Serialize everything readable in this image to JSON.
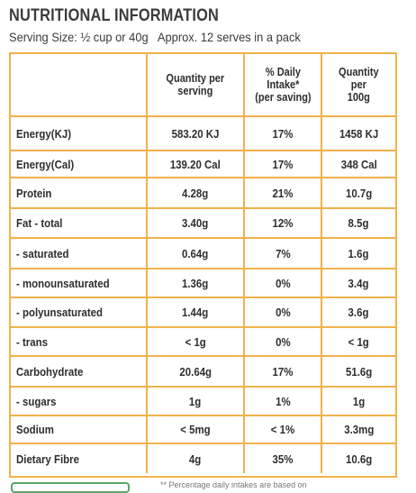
{
  "title": "NUTRITIONAL INFORMATION",
  "serving": {
    "size": "Serving Size: ½ cup or 40g",
    "serves": "Approx. 12 serves in a pack"
  },
  "table": {
    "headers": [
      "",
      "Quantity per\nserving",
      "% Daily\nIntake*\n(per saving)",
      "Quantity\nper\n100g"
    ],
    "rows": [
      [
        "Energy(KJ)",
        "583.20 KJ",
        "17%",
        "1458 KJ"
      ],
      [
        "Energy(Cal)",
        "139.20 Cal",
        "17%",
        "348 Cal"
      ],
      [
        "Protein",
        "4.28g",
        "21%",
        "10.7g"
      ],
      [
        "Fat - total",
        "3.40g",
        "12%",
        "8.5g"
      ],
      [
        "- saturated",
        "0.64g",
        "7%",
        "1.6g"
      ],
      [
        "- monounsaturated",
        "1.36g",
        "0%",
        "3.4g"
      ],
      [
        "- polyunsaturated",
        "1.44g",
        "0%",
        "3.6g"
      ],
      [
        "- trans",
        "< 1g",
        "0%",
        "< 1g"
      ],
      [
        "Carbohydrate",
        "20.64g",
        "17%",
        "51.6g"
      ],
      [
        "- sugars",
        "1g",
        "1%",
        "1g"
      ],
      [
        "Sodium",
        "< 5mg",
        "< 1%",
        "3.3mg"
      ],
      [
        "Dietary Fibre",
        "4g",
        "35%",
        "10.6g"
      ]
    ]
  },
  "footnote": "** Percentage daily intakes are based on",
  "colors": {
    "border": "#f0b24a",
    "footer_box": "#5aa56a"
  }
}
